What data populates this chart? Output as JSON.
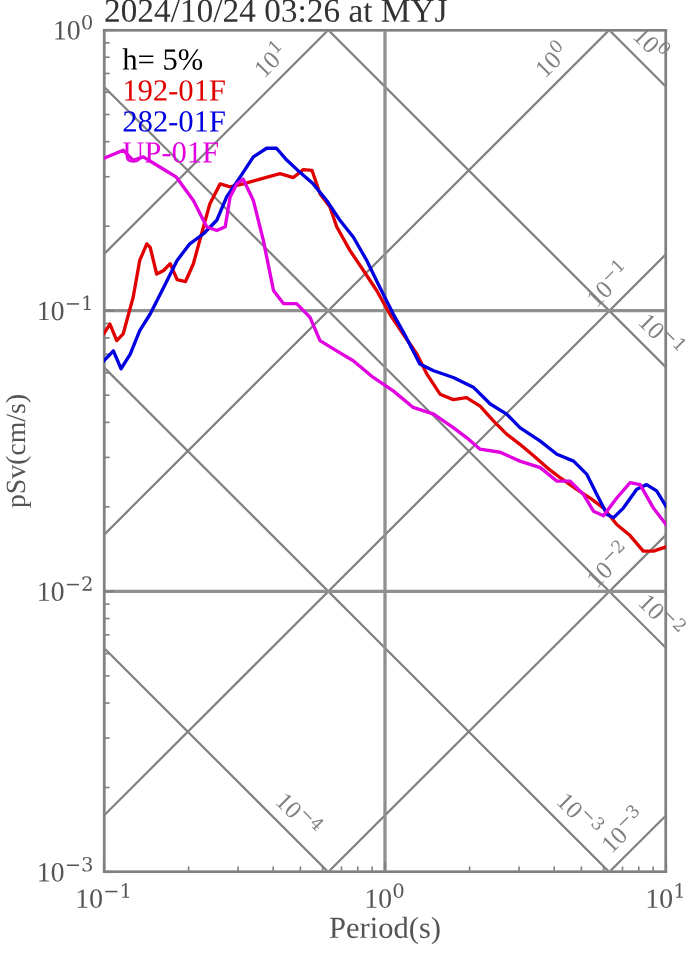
{
  "chart_data": {
    "type": "line",
    "title": "2024/10/24 03:26 at MYJ",
    "xlabel": "Period(s)",
    "ylabel": "pSv(cm/s)",
    "legend_title": "h= 5%",
    "legend": "top left",
    "log": "xy",
    "grid": true,
    "xlim": [
      0.1,
      10
    ],
    "xticks": [
      {
        "value": 0.1,
        "label": "10$^{−1}$"
      },
      {
        "value": 1,
        "label": "10$^{0}$"
      },
      {
        "value": 10,
        "label": "10$^{1}$"
      }
    ],
    "ylim": [
      0.001,
      1
    ],
    "yticks": [
      {
        "value": 0.001,
        "label": "10$^{−3}$"
      },
      {
        "value": 0.01,
        "label": "10$^{−2}$"
      },
      {
        "value": 0.1,
        "label": "10$^{−1}$"
      },
      {
        "value": 1,
        "label": "10$^{0}$"
      }
    ],
    "annotations": [
      {
        "text": "10$^{1}$",
        "x": 0.44,
        "y": 0.7
      },
      {
        "text": "10$^{0}$",
        "x": 4.4,
        "y": 0.7
      },
      {
        "text": "10$^{−1}$",
        "x": 7.0,
        "y": 0.111
      },
      {
        "text": "10$^{−2}$",
        "x": 7.0,
        "y": 0.0111
      },
      {
        "text": "10$^{−3}$",
        "x": 7.9,
        "y": 0.00126
      },
      {
        "text": "10$^{0}$",
        "x": 7.9,
        "y": 0.795
      },
      {
        "text": "10$^{−1}$",
        "x": 8.6,
        "y": 0.073
      },
      {
        "text": "10$^{−2}$",
        "x": 8.6,
        "y": 0.0073
      },
      {
        "text": "10$^{−3}$",
        "x": 4.4,
        "y": 0.00143
      },
      {
        "text": "10$^{−4}$",
        "x": 0.44,
        "y": 0.00143
      }
    ],
    "series": [
      {
        "color": "#808080",
        "x": [
          0.1,
          0.628
        ],
        "values": [
          0.159,
          1
        ]
      },
      {
        "color": "#808080",
        "x": [
          0.1,
          6.28
        ],
        "values": [
          0.0159,
          1
        ]
      },
      {
        "color": "#808080",
        "x": [
          0.1,
          10
        ],
        "values": [
          0.00159,
          0.159
        ]
      },
      {
        "color": "#808080",
        "x": [
          0.628,
          10
        ],
        "values": [
          0.001,
          0.0159
        ]
      },
      {
        "color": "#808080",
        "x": [
          6.28,
          10
        ],
        "values": [
          0.001,
          0.00159
        ]
      },
      {
        "color": "#808080",
        "x": [
          6.28,
          10
        ],
        "values": [
          1,
          0.628
        ]
      },
      {
        "color": "#808080",
        "x": [
          0.628,
          10
        ],
        "values": [
          1,
          0.0628
        ]
      },
      {
        "color": "#808080",
        "x": [
          0.1,
          10
        ],
        "values": [
          0.628,
          0.00628
        ]
      },
      {
        "color": "#808080",
        "x": [
          0.1,
          6.28
        ],
        "values": [
          0.0628,
          0.001
        ]
      },
      {
        "color": "#808080",
        "x": [
          0.1,
          0.628
        ],
        "values": [
          0.00628,
          0.001
        ]
      },
      {
        "name": "192-01F",
        "color": "#e00000",
        "x": [
          0.1,
          0.105,
          0.111,
          0.117,
          0.127,
          0.134,
          0.142,
          0.146,
          0.154,
          0.163,
          0.172,
          0.182,
          0.195,
          0.208,
          0.226,
          0.238,
          0.259,
          0.281,
          0.313,
          0.359,
          0.423,
          0.472,
          0.512,
          0.55,
          0.587,
          0.637,
          0.673,
          0.75,
          0.838,
          0.934,
          1.04,
          1.16,
          1.3,
          1.41,
          1.57,
          1.75,
          1.95,
          2.18,
          2.43,
          2.71,
          3.02,
          3.38,
          3.77,
          4.2,
          4.81,
          5.37,
          5.99,
          6.68,
          7.45,
          8.3,
          9.02,
          10
        ],
        "values": [
          0.083,
          0.0896,
          0.0782,
          0.0826,
          0.1117,
          0.151,
          0.173,
          0.168,
          0.135,
          0.139,
          0.147,
          0.129,
          0.127,
          0.147,
          0.199,
          0.24,
          0.283,
          0.276,
          0.283,
          0.294,
          0.308,
          0.298,
          0.318,
          0.316,
          0.261,
          0.234,
          0.199,
          0.164,
          0.139,
          0.118,
          0.0973,
          0.0826,
          0.07,
          0.0594,
          0.0504,
          0.0482,
          0.049,
          0.0457,
          0.0405,
          0.0363,
          0.0334,
          0.0304,
          0.0276,
          0.0254,
          0.0231,
          0.0215,
          0.0198,
          0.0173,
          0.0158,
          0.0139,
          0.0139,
          0.0144
        ]
      },
      {
        "name": "282-01F",
        "color": "#0000e0",
        "x": [
          0.1,
          0.108,
          0.115,
          0.124,
          0.134,
          0.146,
          0.163,
          0.182,
          0.202,
          0.226,
          0.252,
          0.273,
          0.305,
          0.34,
          0.379,
          0.411,
          0.447,
          0.498,
          0.555,
          0.62,
          0.691,
          0.771,
          0.861,
          0.959,
          1.07,
          1.19,
          1.33,
          1.49,
          1.75,
          2.07,
          2.37,
          2.71,
          3.02,
          3.57,
          4.09,
          4.69,
          5.23,
          5.68,
          6.17,
          6.51,
          7.05,
          7.87,
          8.53,
          9.26,
          10
        ],
        "values": [
          0.0663,
          0.0719,
          0.0621,
          0.07,
          0.0849,
          0.0973,
          0.121,
          0.151,
          0.173,
          0.188,
          0.21,
          0.254,
          0.299,
          0.353,
          0.379,
          0.379,
          0.344,
          0.311,
          0.283,
          0.247,
          0.21,
          0.183,
          0.151,
          0.121,
          0.0973,
          0.0803,
          0.0646,
          0.0611,
          0.0578,
          0.0532,
          0.0465,
          0.0428,
          0.0383,
          0.0343,
          0.0308,
          0.0291,
          0.0261,
          0.0221,
          0.0188,
          0.0183,
          0.0198,
          0.0231,
          0.024,
          0.0228,
          0.0201
        ]
      },
      {
        "name": "UP-01F",
        "color": "#e000e0",
        "x": [
          0.1,
          0.117,
          0.127,
          0.138,
          0.158,
          0.181,
          0.208,
          0.232,
          0.252,
          0.27,
          0.281,
          0.297,
          0.313,
          0.34,
          0.369,
          0.401,
          0.435,
          0.485,
          0.541,
          0.587,
          0.673,
          0.771,
          0.908,
          1.07,
          1.26,
          1.49,
          1.75,
          1.95,
          2.18,
          2.57,
          3.02,
          3.57,
          4.09,
          4.56,
          5.09,
          5.52,
          5.99,
          6.68,
          7.45,
          8.09,
          9.02,
          10
        ],
        "values": [
          0.349,
          0.373,
          0.343,
          0.353,
          0.325,
          0.299,
          0.247,
          0.199,
          0.193,
          0.199,
          0.254,
          0.283,
          0.294,
          0.247,
          0.178,
          0.118,
          0.106,
          0.106,
          0.0947,
          0.0782,
          0.0719,
          0.0663,
          0.0578,
          0.0518,
          0.0452,
          0.0428,
          0.0383,
          0.0353,
          0.0321,
          0.0313,
          0.0291,
          0.0276,
          0.0247,
          0.0247,
          0.0221,
          0.0193,
          0.0186,
          0.0215,
          0.0244,
          0.024,
          0.0198,
          0.0173
        ]
      }
    ]
  }
}
